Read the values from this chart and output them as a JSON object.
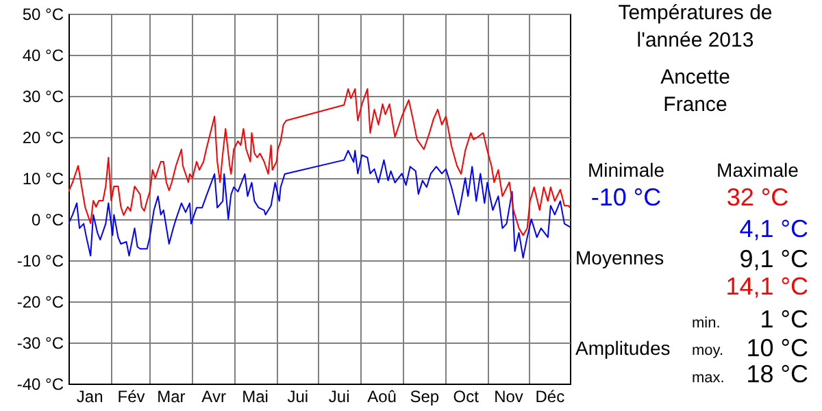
{
  "chart_data": {
    "type": "line",
    "title": "Températures de l'année 2013",
    "subtitle": "Ancette France",
    "xlim": [
      "2013-01-01",
      "2013-12-31"
    ],
    "xticks": [
      {
        "value": "2013-01-16",
        "label": "Jan"
      },
      {
        "value": "2013-02-01",
        "label": null
      },
      {
        "value": "2013-02-15",
        "label": "Fév"
      },
      {
        "value": "2013-03-01",
        "label": null
      },
      {
        "value": "2013-03-16",
        "label": "Mar"
      },
      {
        "value": "2013-04-01",
        "label": null
      },
      {
        "value": "2013-04-16",
        "label": "Avr"
      },
      {
        "value": "2013-05-01",
        "label": null
      },
      {
        "value": "2013-05-16",
        "label": "Mai"
      },
      {
        "value": "2013-06-01",
        "label": null
      },
      {
        "value": "2013-06-16",
        "label": "Jui"
      },
      {
        "value": "2013-07-01",
        "label": null
      },
      {
        "value": "2013-07-16",
        "label": "Jui"
      },
      {
        "value": "2013-08-01",
        "label": null
      },
      {
        "value": "2013-08-16",
        "label": "Aoû"
      },
      {
        "value": "2013-09-01",
        "label": null
      },
      {
        "value": "2013-09-16",
        "label": "Sep"
      },
      {
        "value": "2013-10-01",
        "label": null
      },
      {
        "value": "2013-10-16",
        "label": "Oct"
      },
      {
        "value": "2013-11-01",
        "label": null
      },
      {
        "value": "2013-11-16",
        "label": "Nov"
      },
      {
        "value": "2013-12-01",
        "label": null
      },
      {
        "value": "2013-12-16",
        "label": "Déc"
      }
    ],
    "ylim": [
      -40,
      50
    ],
    "yticks": [
      {
        "value": -40,
        "label": "-40 °C"
      },
      {
        "value": -30,
        "label": "-30 °C"
      },
      {
        "value": -20,
        "label": "-20 °C"
      },
      {
        "value": -10,
        "label": "-10 °C"
      },
      {
        "value": 0,
        "label": "0 °C"
      },
      {
        "value": 10,
        "label": "10 °C"
      },
      {
        "value": 20,
        "label": "20 °C"
      },
      {
        "value": 30,
        "label": "30 °C"
      },
      {
        "value": 40,
        "label": "40 °C"
      },
      {
        "value": 50,
        "label": "50 °C"
      }
    ],
    "grid": true,
    "series": [
      {
        "color": "#0000ff",
        "x": [
          "2013-01-01",
          "2013-01-04",
          "2013-01-07",
          "2013-01-09",
          "2013-01-12",
          "2013-01-14",
          "2013-01-17",
          "2013-01-19",
          "2013-01-22",
          "2013-01-24",
          "2013-01-28",
          "2013-01-30",
          "2013-02-02",
          "2013-02-03",
          "2013-02-06",
          "2013-02-08",
          "2013-02-12",
          "2013-02-14",
          "2013-02-18",
          "2013-02-20",
          "2013-02-22",
          "2013-02-27",
          "2013-03-01",
          "2013-03-04",
          "2013-03-07",
          "2013-03-09",
          "2013-03-11",
          "2013-03-15",
          "2013-03-18",
          "2013-03-20",
          "2013-03-24",
          "2013-03-27",
          "2013-03-30",
          "2013-03-31",
          "2013-04-04",
          "2013-04-08",
          "2013-04-11",
          "2013-04-14",
          "2013-04-17",
          "2013-04-19",
          "2013-04-23",
          "2013-04-24",
          "2013-04-27",
          "2013-04-29",
          "2013-05-01",
          "2013-05-04",
          "2013-05-09",
          "2013-05-11",
          "2013-05-14",
          "2013-05-16",
          "2013-05-19",
          "2013-05-23",
          "2013-05-24",
          "2013-05-28",
          "2013-05-31",
          "2013-06-03",
          "2013-06-04",
          "2013-06-07",
          "2013-07-20",
          "2013-07-23",
          "2013-07-27",
          "2013-07-28",
          "2013-07-30",
          "2013-08-02",
          "2013-08-06",
          "2013-08-08",
          "2013-08-11",
          "2013-08-14",
          "2013-08-18",
          "2013-08-21",
          "2013-08-23",
          "2013-08-26",
          "2013-08-31",
          "2013-09-03",
          "2013-09-06",
          "2013-09-10",
          "2013-09-12",
          "2013-09-15",
          "2013-09-18",
          "2013-09-21",
          "2013-09-25",
          "2013-09-29",
          "2013-10-02",
          "2013-10-06",
          "2013-10-11",
          "2013-10-13",
          "2013-10-16",
          "2013-10-18",
          "2013-10-21",
          "2013-10-24",
          "2013-10-27",
          "2013-10-30",
          "2013-11-01",
          "2013-11-05",
          "2013-11-09",
          "2013-11-12",
          "2013-11-15",
          "2013-11-19",
          "2013-11-21",
          "2013-11-24",
          "2013-11-27",
          "2013-11-30",
          "2013-12-03",
          "2013-12-07",
          "2013-12-10",
          "2013-12-15",
          "2013-12-17",
          "2013-12-20",
          "2013-12-24",
          "2013-12-27",
          "2013-12-30",
          "2013-12-31"
        ],
        "values": [
          -1.1,
          1.1,
          3.9,
          -2.2,
          -1.1,
          -4.4,
          -8.9,
          1.1,
          -3.3,
          -5,
          -1.1,
          3.9,
          -3.9,
          1.1,
          -4.4,
          -6,
          -5.5,
          -8.9,
          -2.2,
          -6.7,
          -7.2,
          -7.2,
          -4.4,
          2.2,
          5.6,
          1.1,
          2.2,
          -6,
          -2.2,
          0,
          3.9,
          1.7,
          3.9,
          -1.1,
          2.8,
          2.8,
          5.6,
          8.3,
          11,
          2.8,
          4.4,
          11,
          0,
          6,
          7.8,
          6.7,
          11,
          5.6,
          8.9,
          4.4,
          2.8,
          2.2,
          1.1,
          3.3,
          8.9,
          4.4,
          7.8,
          11,
          14.4,
          16.7,
          13.9,
          16.7,
          11.1,
          15.6,
          15,
          11.1,
          12.2,
          8.9,
          14.4,
          9.4,
          11.7,
          8.9,
          11.1,
          8.3,
          12.8,
          11.7,
          6.1,
          9.4,
          7.8,
          11.1,
          12.8,
          11.1,
          12.2,
          7.8,
          1.1,
          4.4,
          10,
          5.6,
          12.8,
          4.4,
          11.1,
          3.9,
          8.9,
          2.2,
          5.6,
          -2.2,
          -1.1,
          6.7,
          -7.8,
          -3.3,
          -9.4,
          -4.4,
          0,
          -4.4,
          -2.2,
          -4.4,
          3.3,
          1.1,
          4.4,
          -1.1,
          -1.7,
          -1.9
        ]
      },
      {
        "color": "#ff0000",
        "x": [
          "2013-01-01",
          "2013-01-04",
          "2013-01-08",
          "2013-01-09",
          "2013-01-11",
          "2013-01-13",
          "2013-01-17",
          "2013-01-19",
          "2013-01-21",
          "2013-01-23",
          "2013-01-26",
          "2013-01-28",
          "2013-01-30",
          "2013-02-01",
          "2013-02-03",
          "2013-02-06",
          "2013-02-08",
          "2013-02-10",
          "2013-02-13",
          "2013-02-15",
          "2013-02-18",
          "2013-02-22",
          "2013-02-23",
          "2013-02-25",
          "2013-02-27",
          "2013-03-01",
          "2013-03-03",
          "2013-03-05",
          "2013-03-09",
          "2013-03-11",
          "2013-03-13",
          "2013-03-15",
          "2013-03-17",
          "2013-03-20",
          "2013-03-24",
          "2013-03-25",
          "2013-03-27",
          "2013-03-29",
          "2013-03-30",
          "2013-04-01",
          "2013-04-04",
          "2013-04-06",
          "2013-04-09",
          "2013-04-11",
          "2013-04-14",
          "2013-04-17",
          "2013-04-19",
          "2013-04-21",
          "2013-04-23",
          "2013-04-25",
          "2013-04-28",
          "2013-04-29",
          "2013-05-01",
          "2013-05-04",
          "2013-05-06",
          "2013-05-08",
          "2013-05-10",
          "2013-05-13",
          "2013-05-14",
          "2013-05-16",
          "2013-05-18",
          "2013-05-20",
          "2013-05-23",
          "2013-05-26",
          "2013-05-28",
          "2013-05-29",
          "2013-06-01",
          "2013-06-02",
          "2013-06-04",
          "2013-06-06",
          "2013-06-08",
          "2013-07-20",
          "2013-07-23",
          "2013-07-25",
          "2013-07-28",
          "2013-07-30",
          "2013-08-02",
          "2013-08-06",
          "2013-08-08",
          "2013-08-11",
          "2013-08-14",
          "2013-08-17",
          "2013-08-19",
          "2013-08-22",
          "2013-08-26",
          "2013-08-31",
          "2013-09-05",
          "2013-09-08",
          "2013-09-11",
          "2013-09-16",
          "2013-09-20",
          "2013-09-23",
          "2013-09-26",
          "2013-09-29",
          "2013-10-02",
          "2013-10-06",
          "2013-10-10",
          "2013-10-13",
          "2013-10-16",
          "2013-10-20",
          "2013-10-22",
          "2013-10-25",
          "2013-10-29",
          "2013-11-01",
          "2013-11-04",
          "2013-11-06",
          "2013-11-09",
          "2013-11-12",
          "2013-11-17",
          "2013-11-20",
          "2013-11-24",
          "2013-11-27",
          "2013-11-30",
          "2013-12-02",
          "2013-12-05",
          "2013-12-09",
          "2013-12-12",
          "2013-12-15",
          "2013-12-17",
          "2013-12-20",
          "2013-12-24",
          "2013-12-27",
          "2013-12-30",
          "2013-12-31"
        ],
        "values": [
          6.7,
          9,
          13,
          11,
          7,
          3,
          -1,
          4.5,
          3,
          4.5,
          4.5,
          8,
          15,
          4.5,
          8,
          8,
          3,
          1,
          3,
          2,
          8,
          6,
          3,
          2,
          4.5,
          6.7,
          12,
          10,
          14,
          14,
          9,
          7,
          9,
          13,
          17,
          13,
          11,
          9,
          11,
          10,
          14,
          12,
          14,
          17,
          21,
          25,
          14,
          9,
          16,
          22,
          13,
          11,
          17,
          19,
          18,
          22,
          17,
          14,
          21,
          16,
          15,
          16,
          14,
          11,
          18,
          12,
          14,
          17,
          19,
          23,
          24,
          27.8,
          31.7,
          29.4,
          31.7,
          24,
          28,
          31.7,
          21,
          26.7,
          23,
          28,
          25.5,
          28,
          20,
          25,
          29,
          24.4,
          19.4,
          17,
          21,
          24.4,
          26.7,
          23,
          25,
          17.8,
          13,
          11,
          16.7,
          21,
          19.4,
          20,
          21,
          16.7,
          13,
          9,
          12,
          5.6,
          9,
          2.2,
          -2.2,
          -3.9,
          -2.2,
          4.4,
          7.8,
          2.2,
          7.8,
          4.4,
          7.8,
          4.4,
          7.2,
          3.3,
          3.3,
          2.8
        ]
      }
    ],
    "annotations": [
      "Minimale",
      "-10 °C",
      "Maximale",
      "32 °C",
      "4,1 °C",
      "Moyennes",
      "9,1 °C",
      "14,1 °C",
      "Amplitudes",
      "min.",
      "1 °C",
      "moy.",
      "10 °C",
      "max.",
      "18 °C"
    ]
  }
}
